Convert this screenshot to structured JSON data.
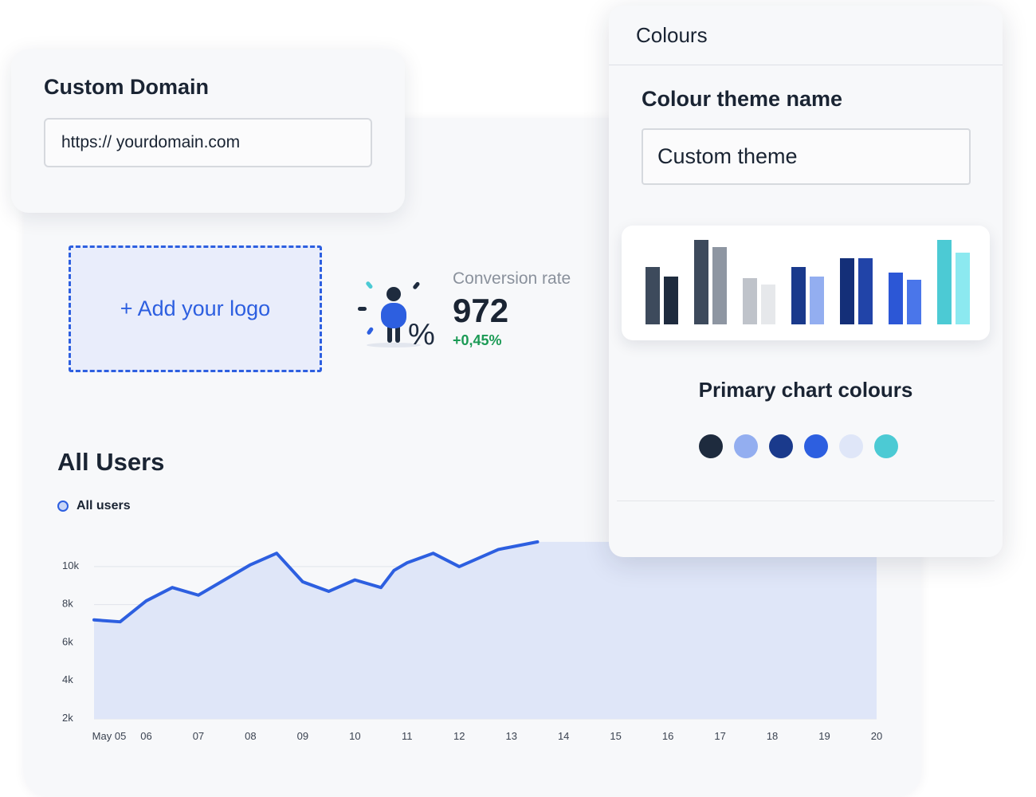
{
  "custom_domain": {
    "title": "Custom Domain",
    "value": "https:// yourdomain.com"
  },
  "logo_upload": {
    "label": "+ Add your logo"
  },
  "kpi": {
    "icon": "person-percent-icon",
    "label": "Conversion rate",
    "value": "972",
    "change": "+0,45%",
    "change_color": "#1b9a55"
  },
  "all_users": {
    "title": "All Users",
    "legend_label": "All users"
  },
  "chart_data": {
    "type": "area",
    "title": "All Users",
    "xlabel": "",
    "ylabel": "",
    "categories": [
      "May 05",
      "06",
      "07",
      "08",
      "09",
      "10",
      "11",
      "12",
      "13",
      "14",
      "15",
      "16",
      "17",
      "18",
      "19",
      "20"
    ],
    "x": [
      5,
      5.5,
      6,
      6.5,
      7,
      7.5,
      8,
      8.5,
      9,
      9.5,
      10,
      10.5,
      10.75,
      11,
      11.5,
      12,
      12.75,
      13.5
    ],
    "y": [
      7.2,
      7.1,
      8.2,
      8.9,
      8.5,
      9.3,
      10.1,
      10.7,
      9.2,
      8.7,
      9.3,
      8.9,
      9.8,
      10.2,
      10.7,
      10.0,
      10.9,
      11.3
    ],
    "y_ticks": [
      "10k",
      "8k",
      "6k",
      "4k",
      "2k"
    ],
    "ylim": [
      2,
      10.75
    ],
    "legend": [
      "All users"
    ],
    "line_color": "#2d5fe0",
    "fill_color": "#dfe6f8",
    "grid": true
  },
  "colours_panel": {
    "header": "Colours",
    "theme_label": "Colour theme name",
    "theme_value": "Custom theme",
    "primary_label": "Primary chart colours",
    "preview_bars": [
      {
        "h1": 72,
        "h2": 60,
        "c1": "#3d4a5c",
        "c2": "#1e2b3e"
      },
      {
        "h1": 106,
        "h2": 97,
        "c1": "#3d4a5c",
        "c2": "#8e96a2"
      },
      {
        "h1": 58,
        "h2": 50,
        "c1": "#bfc3ca",
        "c2": "#e6e8eb"
      },
      {
        "h1": 72,
        "h2": 60,
        "c1": "#1a3a8c",
        "c2": "#93aef0"
      },
      {
        "h1": 83,
        "h2": 83,
        "c1": "#142f78",
        "c2": "#2144a8"
      },
      {
        "h1": 65,
        "h2": 56,
        "c1": "#2c57d6",
        "c2": "#4a76ea"
      },
      {
        "h1": 106,
        "h2": 90,
        "c1": "#4ccad4",
        "c2": "#8ce9f0"
      }
    ],
    "swatches": [
      "#1e2b3e",
      "#93aef0",
      "#1a3a8c",
      "#2d5fe0",
      "#dfe6f8",
      "#4ccad4"
    ]
  }
}
